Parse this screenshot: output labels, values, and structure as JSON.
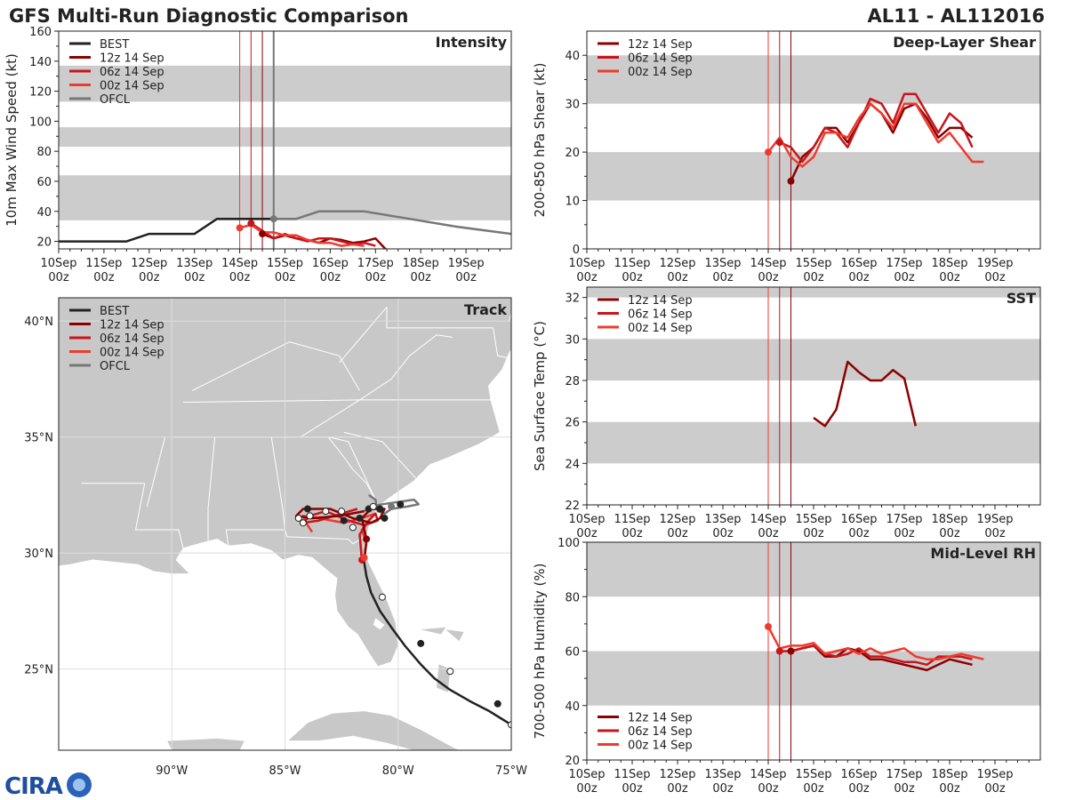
{
  "header": {
    "title": "GFS Multi-Run Diagnostic Comparison",
    "storm_id": "AL11 - AL112016"
  },
  "logo": {
    "text": "CIRA",
    "alt": "CIRA logo"
  },
  "colors": {
    "best": "#222222",
    "run12": "#8b0000",
    "run06": "#c8151b",
    "run00": "#ee3b2e",
    "ofcl": "#777777",
    "band": "#cccccc",
    "land": "#c8c8c8",
    "grid": "#dddddd"
  },
  "chart_data": [
    {
      "id": "intensity",
      "type": "line",
      "title": "Intensity",
      "ylabel": "10m Max Wind Speed (kt)",
      "ylim": [
        15,
        160
      ],
      "yticks": [
        20,
        40,
        60,
        80,
        100,
        120,
        140,
        160
      ],
      "xlim": [
        0,
        10
      ],
      "xticks": [
        "10Sep 00z",
        "11Sep 00z",
        "12Sep 00z",
        "13Sep 00z",
        "14Sep 00z",
        "15Sep 00z",
        "16Sep 00z",
        "17Sep 00z",
        "18Sep 00z",
        "19Sep 00z"
      ],
      "bands": [
        [
          34,
          64
        ],
        [
          83,
          96
        ],
        [
          113,
          137
        ]
      ],
      "vlines": [
        {
          "x": 4.0,
          "series": "run00"
        },
        {
          "x": 4.25,
          "series": "run06"
        },
        {
          "x": 4.5,
          "series": "run12"
        },
        {
          "x": 4.75,
          "series": "ofcl"
        }
      ],
      "legend": [
        "BEST",
        "12z 14 Sep",
        "06z 14 Sep",
        "00z 14 Sep",
        "OFCL"
      ],
      "series": [
        {
          "name": "BEST",
          "key": "best",
          "x": [
            0,
            0.5,
            1,
            1.5,
            2,
            2.5,
            3,
            3.5,
            4,
            4.5,
            4.75
          ],
          "y": [
            20,
            20,
            20,
            20,
            25,
            25,
            25,
            35,
            35,
            35,
            35
          ]
        },
        {
          "name": "12z 14 Sep",
          "key": "run12",
          "x": [
            4.5,
            4.75,
            5.0,
            5.25,
            5.5,
            5.75,
            6.0,
            6.25,
            6.5,
            6.75,
            7.0,
            7.25
          ],
          "y": [
            25,
            22,
            24,
            22,
            21,
            19,
            22,
            21,
            19,
            20,
            22,
            14
          ]
        },
        {
          "name": "06z 14 Sep",
          "key": "run06",
          "x": [
            4.25,
            4.5,
            4.75,
            5.0,
            5.25,
            5.5,
            5.75,
            6.0,
            6.25,
            6.5,
            6.75,
            7.0
          ],
          "y": [
            32,
            27,
            22,
            25,
            22,
            20,
            22,
            22,
            20,
            18,
            19,
            17
          ]
        },
        {
          "name": "00z 14 Sep",
          "key": "run00",
          "x": [
            4.0,
            4.25,
            4.5,
            4.75,
            5.0,
            5.25,
            5.5,
            5.75,
            6.0,
            6.25,
            6.5,
            6.75
          ],
          "y": [
            29,
            31,
            26,
            26,
            24,
            24,
            21,
            19,
            19,
            17,
            18,
            17
          ]
        },
        {
          "name": "OFCL",
          "key": "ofcl",
          "x": [
            4.75,
            5.25,
            5.75,
            6.75,
            7.75,
            8.75,
            10.0
          ],
          "y": [
            35,
            35,
            40,
            40,
            35,
            30,
            25
          ]
        }
      ],
      "markers": [
        {
          "key": "run00",
          "x": 4.0,
          "y": 29
        },
        {
          "key": "run06",
          "x": 4.25,
          "y": 32
        },
        {
          "key": "run12",
          "x": 4.5,
          "y": 25
        },
        {
          "key": "ofcl",
          "x": 4.75,
          "y": 35
        }
      ]
    },
    {
      "id": "shear",
      "type": "line",
      "title": "Deep-Layer Shear",
      "ylabel": "200-850 hPa Shear (kt)",
      "ylim": [
        0,
        45
      ],
      "yticks": [
        0,
        10,
        20,
        30,
        40
      ],
      "xlim": [
        0,
        10
      ],
      "xticks": [
        "10Sep 00z",
        "11Sep 00z",
        "12Sep 00z",
        "13Sep 00z",
        "14Sep 00z",
        "15Sep 00z",
        "16Sep 00z",
        "17Sep 00z",
        "18Sep 00z",
        "19Sep 00z"
      ],
      "bands": [
        [
          10,
          20
        ],
        [
          30,
          40
        ]
      ],
      "vlines": [
        {
          "x": 4.0,
          "series": "run00"
        },
        {
          "x": 4.25,
          "series": "run06"
        },
        {
          "x": 4.5,
          "series": "run12"
        }
      ],
      "legend": [
        "12z 14 Sep",
        "06z 14 Sep",
        "00z 14 Sep"
      ],
      "series": [
        {
          "name": "12z 14 Sep",
          "key": "run12",
          "x": [
            4.5,
            4.75,
            5.0,
            5.25,
            5.5,
            5.75,
            6.0,
            6.25,
            6.5,
            6.75,
            7.0,
            7.25,
            7.5,
            7.75,
            8.0,
            8.25,
            8.5
          ],
          "y": [
            14,
            19,
            21,
            25,
            25,
            22,
            26,
            30,
            28,
            24,
            29,
            30,
            27,
            23,
            25,
            25,
            23
          ]
        },
        {
          "name": "06z 14 Sep",
          "key": "run06",
          "x": [
            4.25,
            4.5,
            4.75,
            5.0,
            5.25,
            5.5,
            5.75,
            6.0,
            6.25,
            6.5,
            6.75,
            7.0,
            7.25,
            7.5,
            7.75,
            8.0,
            8.25,
            8.5
          ],
          "y": [
            22,
            21,
            18,
            21,
            25,
            24,
            21,
            26,
            31,
            30,
            26,
            32,
            32,
            28,
            24,
            28,
            26,
            21
          ]
        },
        {
          "name": "00z 14 Sep",
          "key": "run00",
          "x": [
            4.0,
            4.25,
            4.5,
            4.75,
            5.0,
            5.25,
            5.5,
            5.75,
            6.0,
            6.25,
            6.5,
            6.75,
            7.0,
            7.25,
            7.5,
            7.75,
            8.0,
            8.25,
            8.5,
            8.75
          ],
          "y": [
            20,
            23,
            19,
            17,
            19,
            24,
            24,
            23,
            27,
            30,
            28,
            25,
            30,
            30,
            26,
            22,
            24,
            21,
            18,
            18
          ]
        }
      ],
      "markers": [
        {
          "key": "run00",
          "x": 4.0,
          "y": 20
        },
        {
          "key": "run06",
          "x": 4.25,
          "y": 22
        },
        {
          "key": "run12",
          "x": 4.5,
          "y": 14
        }
      ]
    },
    {
      "id": "sst",
      "type": "line",
      "title": "SST",
      "ylabel": "Sea Surface Temp (°C)",
      "ylim": [
        22,
        32.5
      ],
      "yticks": [
        22,
        24,
        26,
        28,
        30,
        32
      ],
      "xlim": [
        0,
        10
      ],
      "xticks": [
        "10Sep 00z",
        "11Sep 00z",
        "12Sep 00z",
        "13Sep 00z",
        "14Sep 00z",
        "15Sep 00z",
        "16Sep 00z",
        "17Sep 00z",
        "18Sep 00z",
        "19Sep 00z"
      ],
      "bands": [
        [
          24,
          26
        ],
        [
          28,
          30
        ],
        [
          32,
          34
        ]
      ],
      "vlines": [
        {
          "x": 4.0,
          "series": "run00"
        },
        {
          "x": 4.25,
          "series": "run06"
        },
        {
          "x": 4.5,
          "series": "run12"
        }
      ],
      "legend": [
        "12z 14 Sep",
        "06z 14 Sep",
        "00z 14 Sep"
      ],
      "series": [
        {
          "name": "12z 14 Sep",
          "key": "run12",
          "x": [
            5.0,
            5.25,
            5.5,
            5.75,
            6.0,
            6.25,
            6.5,
            6.75,
            7.0,
            7.25
          ],
          "y": [
            26.2,
            25.8,
            26.6,
            28.9,
            28.4,
            28.0,
            28.0,
            28.5,
            28.1,
            25.8
          ]
        }
      ],
      "markers": []
    },
    {
      "id": "rh",
      "type": "line",
      "title": "Mid-Level RH",
      "ylabel": "700-500 hPa Humidity (%)",
      "ylim": [
        20,
        100
      ],
      "yticks": [
        20,
        40,
        60,
        80,
        100
      ],
      "xlim": [
        0,
        10
      ],
      "xticks": [
        "10Sep 00z",
        "11Sep 00z",
        "12Sep 00z",
        "13Sep 00z",
        "14Sep 00z",
        "15Sep 00z",
        "16Sep 00z",
        "17Sep 00z",
        "18Sep 00z",
        "19Sep 00z"
      ],
      "bands": [
        [
          40,
          60
        ],
        [
          80,
          100
        ]
      ],
      "vlines": [
        {
          "x": 4.0,
          "series": "run00"
        },
        {
          "x": 4.25,
          "series": "run06"
        },
        {
          "x": 4.5,
          "series": "run12"
        }
      ],
      "legend": [
        "12z 14 Sep",
        "06z 14 Sep",
        "00z 14 Sep"
      ],
      "series": [
        {
          "name": "12z 14 Sep",
          "key": "run12",
          "x": [
            4.5,
            4.75,
            5.0,
            5.25,
            5.5,
            5.75,
            6.0,
            6.25,
            6.5,
            6.75,
            7.0,
            7.25,
            7.5,
            7.75,
            8.0,
            8.25,
            8.5
          ],
          "y": [
            60,
            61,
            62,
            58,
            58,
            61,
            60,
            57,
            57,
            56,
            55,
            54,
            53,
            55,
            57,
            56,
            55
          ]
        },
        {
          "name": "06z 14 Sep",
          "key": "run06",
          "x": [
            4.25,
            4.5,
            4.75,
            5.0,
            5.25,
            5.5,
            5.75,
            6.0,
            6.25,
            6.5,
            6.75,
            7.0,
            7.25,
            7.5,
            7.75,
            8.0,
            8.25,
            8.5
          ],
          "y": [
            60,
            60,
            61,
            62,
            59,
            58,
            59,
            61,
            58,
            58,
            57,
            56,
            56,
            55,
            58,
            58,
            58,
            57
          ]
        },
        {
          "name": "00z 14 Sep",
          "key": "run00",
          "x": [
            4.0,
            4.25,
            4.5,
            4.75,
            5.0,
            5.25,
            5.5,
            5.75,
            6.0,
            6.25,
            6.5,
            6.75,
            7.0,
            7.25,
            7.5,
            7.75,
            8.0,
            8.25,
            8.5,
            8.75
          ],
          "y": [
            69,
            61,
            62,
            62,
            63,
            59,
            60,
            61,
            59,
            61,
            59,
            60,
            61,
            58,
            57,
            57,
            58,
            59,
            58,
            57
          ]
        }
      ],
      "markers": [
        {
          "key": "run00",
          "x": 4.0,
          "y": 69
        },
        {
          "key": "run06",
          "x": 4.25,
          "y": 60
        },
        {
          "key": "run12",
          "x": 4.5,
          "y": 60
        }
      ]
    },
    {
      "id": "track",
      "type": "scatter",
      "title": "Track",
      "lon_range": [
        -95,
        -75
      ],
      "lat_range": [
        21.5,
        41
      ],
      "lon_ticks": [
        {
          "v": -90,
          "label": "90°W"
        },
        {
          "v": -85,
          "label": "85°W"
        },
        {
          "v": -80,
          "label": "80°W"
        },
        {
          "v": -75,
          "label": "75°W"
        }
      ],
      "lat_ticks": [
        {
          "v": 25,
          "label": "25°N"
        },
        {
          "v": 30,
          "label": "30°N"
        },
        {
          "v": 35,
          "label": "35°N"
        },
        {
          "v": 40,
          "label": "40°N"
        }
      ],
      "legend": [
        "BEST",
        "12z 14 Sep",
        "06z 14 Sep",
        "00z 14 Sep",
        "OFCL"
      ],
      "series": [
        {
          "name": "BEST",
          "key": "best",
          "lon": [
            -75.0,
            -75.5,
            -76.0,
            -76.8,
            -77.7,
            -78.4,
            -79.0,
            -79.7,
            -80.3,
            -80.8,
            -81.2,
            -81.4,
            -81.5
          ],
          "lat": [
            22.6,
            22.9,
            23.2,
            23.6,
            24.1,
            24.6,
            25.2,
            26.0,
            26.8,
            27.5,
            28.3,
            29.0,
            29.6
          ]
        },
        {
          "name": "12z 14 Sep",
          "key": "run12",
          "lon": [
            -81.5,
            -81.4,
            -81.6,
            -81.2,
            -80.6,
            -80.8,
            -81.2,
            -82.0,
            -83.0,
            -84.2,
            -84.5,
            -83.8,
            -82.6,
            -81.5
          ],
          "lat": [
            29.6,
            30.6,
            31.5,
            31.9,
            31.9,
            31.5,
            31.3,
            31.5,
            31.9,
            31.9,
            31.6,
            31.5,
            31.6,
            31.8
          ]
        },
        {
          "name": "06z 14 Sep",
          "key": "run06",
          "lon": [
            -81.6,
            -81.7,
            -81.3,
            -81.0,
            -80.9,
            -81.5,
            -82.2,
            -83.2,
            -83.9,
            -84.2,
            -83.5,
            -82.5,
            -81.8
          ],
          "lat": [
            29.7,
            30.8,
            31.4,
            31.7,
            31.4,
            31.2,
            31.4,
            31.8,
            31.6,
            31.3,
            31.4,
            31.7,
            31.9
          ]
        },
        {
          "name": "00z 14 Sep",
          "key": "run00",
          "lon": [
            -81.5,
            -81.4,
            -81.6,
            -81.3,
            -81.0,
            -81.6,
            -82.4,
            -83.5,
            -84.2,
            -84.0,
            -83.8
          ],
          "lat": [
            29.8,
            30.4,
            31.0,
            31.4,
            31.7,
            31.5,
            31.3,
            31.5,
            31.6,
            31.2,
            30.9
          ]
        },
        {
          "name": "OFCL",
          "key": "ofcl",
          "lon": [
            -81.5,
            -81.2,
            -80.7,
            -80.0,
            -79.3,
            -79.1,
            -79.6,
            -80.3,
            -80.6,
            -80.9,
            -81.0,
            -81.3
          ],
          "lat": [
            31.8,
            32.0,
            32.1,
            32.2,
            32.3,
            32.1,
            32.0,
            31.9,
            31.7,
            31.8,
            32.3,
            32.5
          ]
        }
      ],
      "points": [
        {
          "key": "best",
          "lon": -75.0,
          "lat": 22.6,
          "fill": "white"
        },
        {
          "key": "best",
          "lon": -75.6,
          "lat": 23.5,
          "fill": "black"
        },
        {
          "key": "best",
          "lon": -77.7,
          "lat": 24.9,
          "fill": "white"
        },
        {
          "key": "best",
          "lon": -79.0,
          "lat": 26.1,
          "fill": "black"
        },
        {
          "key": "best",
          "lon": -80.7,
          "lat": 28.1,
          "fill": "white"
        },
        {
          "key": "run12",
          "lon": -81.4,
          "lat": 30.6,
          "fill": "color"
        },
        {
          "key": "run06",
          "lon": -81.6,
          "lat": 29.7,
          "fill": "color"
        },
        {
          "key": "run00",
          "lon": -81.5,
          "lat": 29.8,
          "fill": "color"
        },
        {
          "key": "best",
          "lon": -80.6,
          "lat": 31.5,
          "fill": "black"
        },
        {
          "key": "best",
          "lon": -81.3,
          "lat": 31.9,
          "fill": "black"
        },
        {
          "key": "best",
          "lon": -81.7,
          "lat": 31.5,
          "fill": "black"
        },
        {
          "key": "best",
          "lon": -82.4,
          "lat": 31.4,
          "fill": "black"
        },
        {
          "key": "best",
          "lon": -82.0,
          "lat": 31.1,
          "fill": "white"
        },
        {
          "key": "best",
          "lon": -82.5,
          "lat": 31.8,
          "fill": "white"
        },
        {
          "key": "best",
          "lon": -83.2,
          "lat": 31.8,
          "fill": "white"
        },
        {
          "key": "best",
          "lon": -84.0,
          "lat": 31.9,
          "fill": "black"
        },
        {
          "key": "best",
          "lon": -83.9,
          "lat": 31.6,
          "fill": "white"
        },
        {
          "key": "best",
          "lon": -84.2,
          "lat": 31.3,
          "fill": "white"
        },
        {
          "key": "best",
          "lon": -84.4,
          "lat": 31.5,
          "fill": "white"
        },
        {
          "key": "best",
          "lon": -81.1,
          "lat": 32.0,
          "fill": "white"
        },
        {
          "key": "best",
          "lon": -80.8,
          "lat": 31.9,
          "fill": "black"
        },
        {
          "key": "best",
          "lon": -79.9,
          "lat": 32.1,
          "fill": "black"
        },
        {
          "key": "ofcl",
          "lon": -80.3,
          "lat": 32.0,
          "fill": "color"
        }
      ]
    }
  ]
}
